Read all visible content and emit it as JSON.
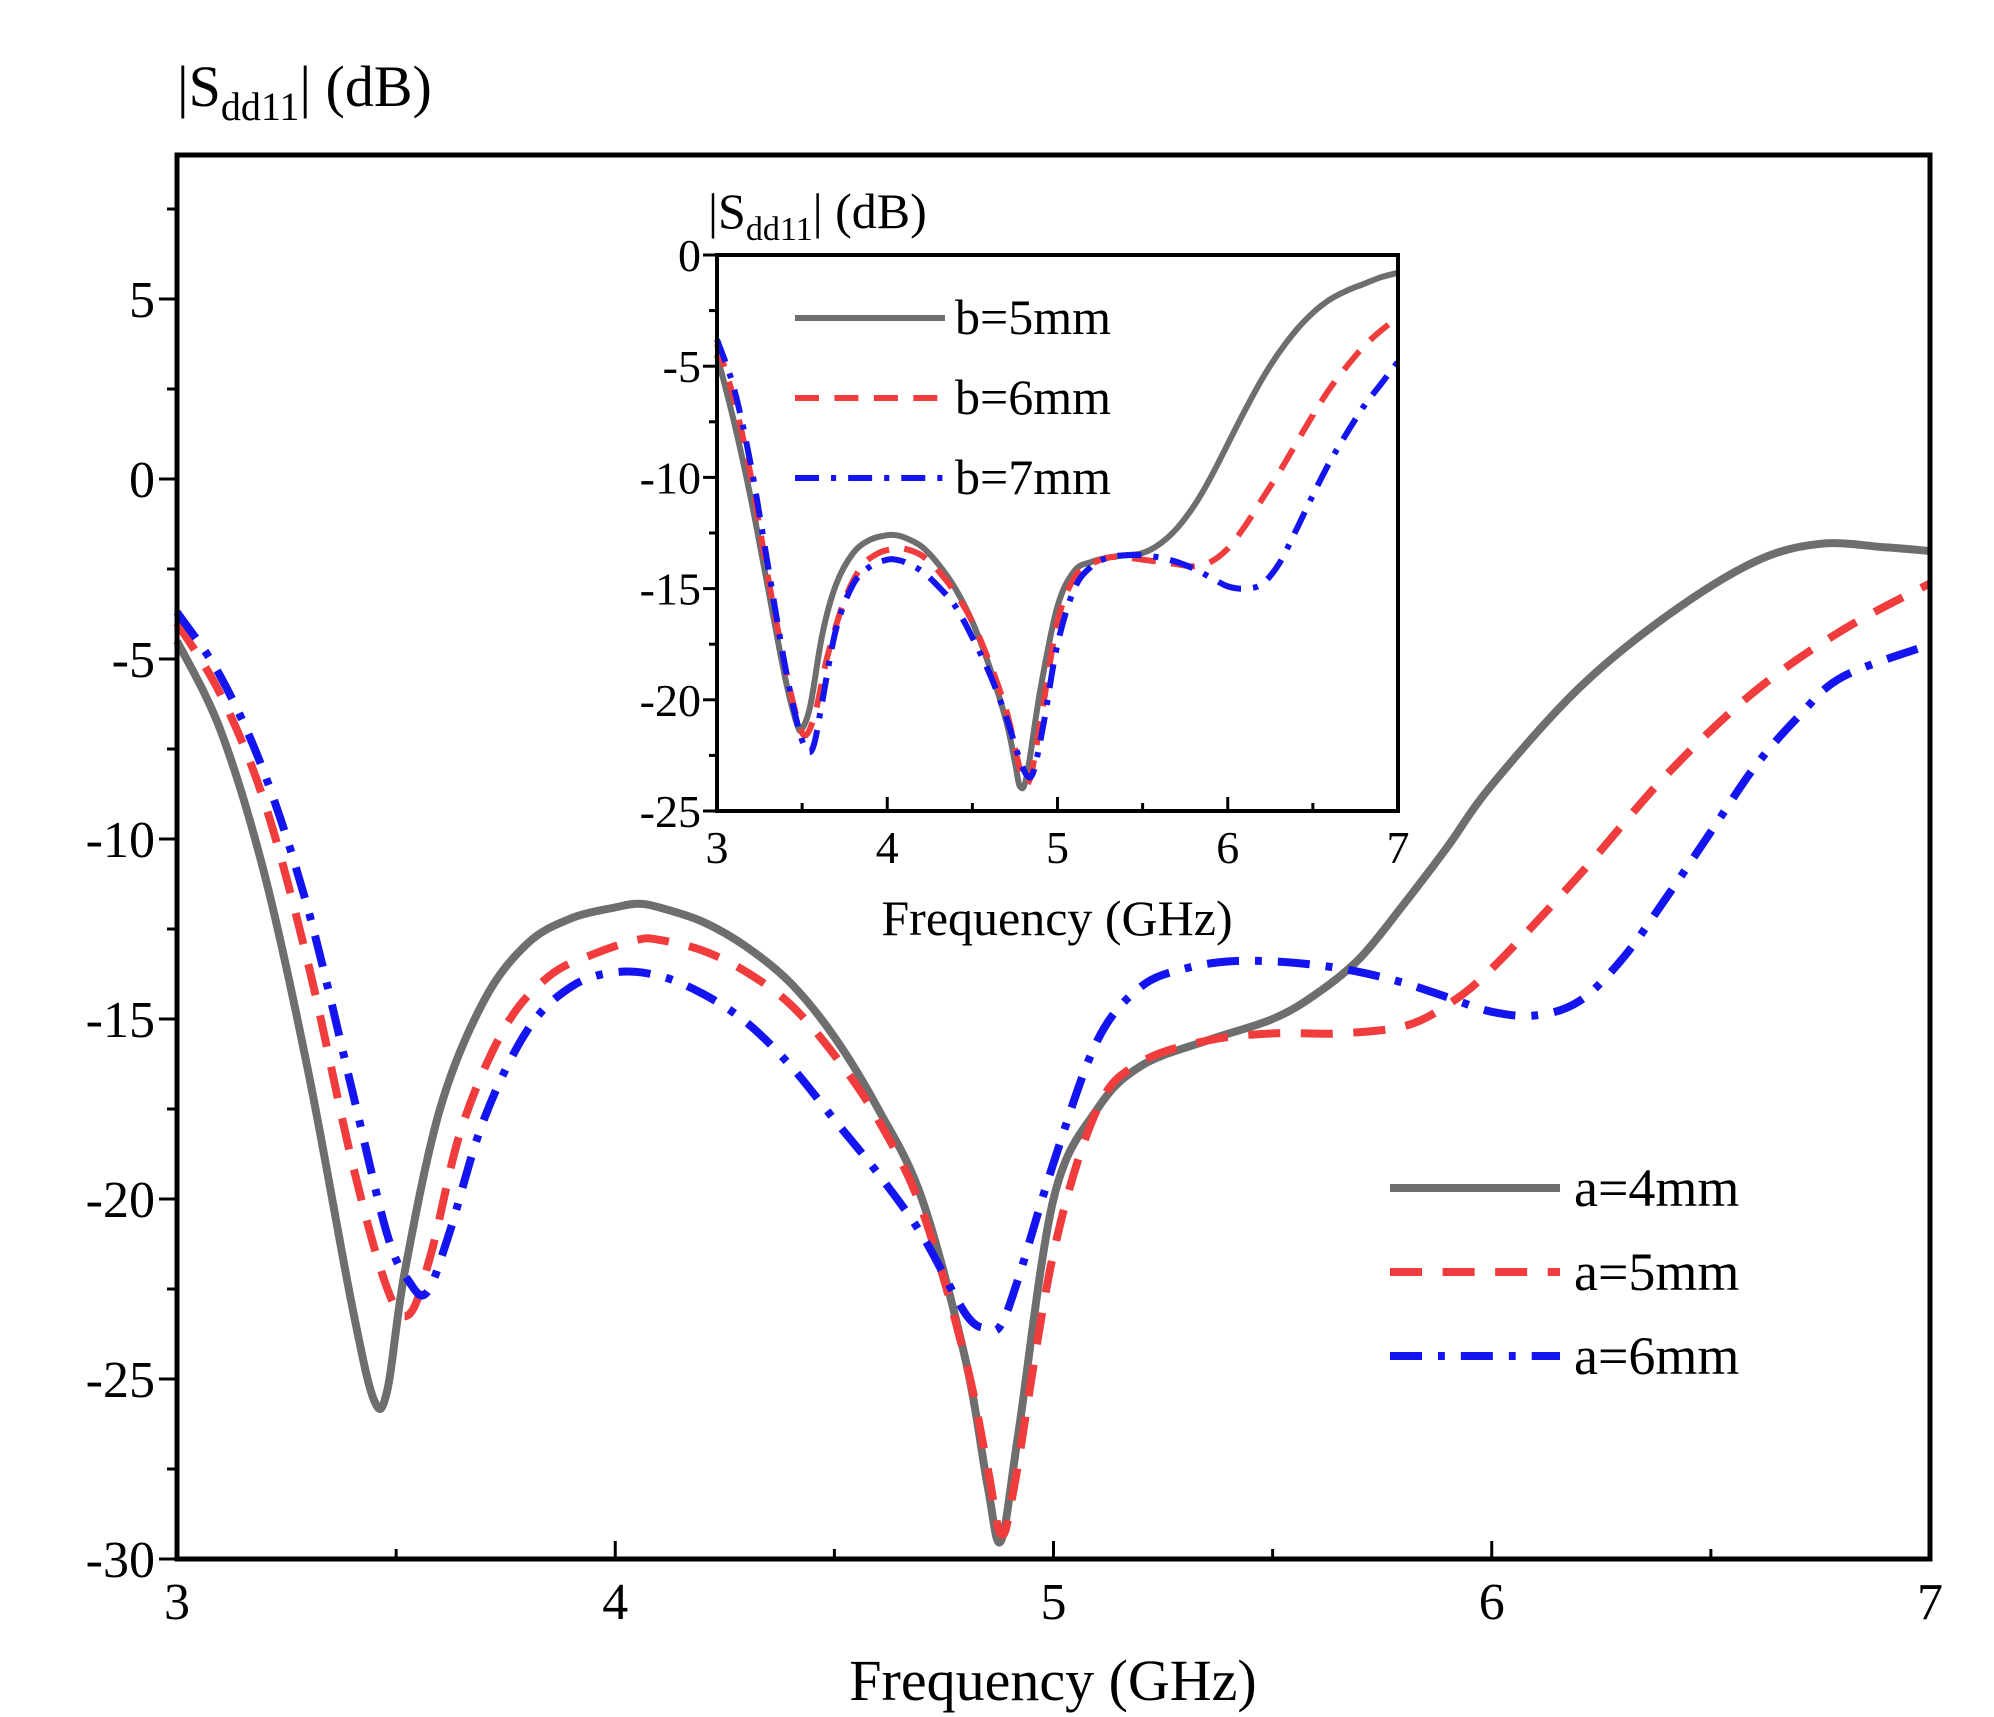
{
  "chart_data": [
    {
      "type": "line",
      "role": "main",
      "title": "",
      "ylabel": "|S",
      "ylabel_sub": "dd11",
      "ylabel_tail": "| (dB)",
      "xlabel": "Frequency (GHz)",
      "xlim": [
        3,
        7
      ],
      "ylim": [
        -30,
        9
      ],
      "xticks": [
        3,
        4,
        5,
        6,
        7
      ],
      "yticks": [
        -30,
        -25,
        -20,
        -15,
        -10,
        -5,
        0,
        5
      ],
      "x_tick_labels": [
        "3",
        "4",
        "5",
        "6",
        "7"
      ],
      "y_tick_labels": [
        "-30",
        "-25",
        "-20",
        "-15",
        "-10",
        "-5",
        "0",
        "5"
      ],
      "grid": false,
      "legend_position": "bottom-right",
      "series": [
        {
          "name": "a=4mm",
          "color": "#6e6e6e",
          "style": "solid",
          "x": [
            3.0,
            3.1,
            3.2,
            3.3,
            3.4,
            3.45,
            3.48,
            3.52,
            3.6,
            3.7,
            3.8,
            3.9,
            4.0,
            4.05,
            4.1,
            4.2,
            4.3,
            4.4,
            4.5,
            4.6,
            4.7,
            4.8,
            4.85,
            4.88,
            4.92,
            5.0,
            5.1,
            5.2,
            5.35,
            5.5,
            5.6,
            5.7,
            5.8,
            5.9,
            6.0,
            6.2,
            6.4,
            6.6,
            6.75,
            6.9,
            7.0
          ],
          "y": [
            -4.5,
            -7.0,
            -11.0,
            -16.5,
            -23.0,
            -25.6,
            -25.3,
            -22.0,
            -17.5,
            -14.5,
            -12.9,
            -12.2,
            -11.9,
            -11.8,
            -11.9,
            -12.3,
            -13.0,
            -14.0,
            -15.5,
            -17.5,
            -20.0,
            -24.5,
            -28.0,
            -29.5,
            -26.5,
            -20.0,
            -17.5,
            -16.3,
            -15.6,
            -15.0,
            -14.3,
            -13.3,
            -11.8,
            -10.2,
            -8.5,
            -5.8,
            -3.8,
            -2.3,
            -1.8,
            -1.9,
            -2.0
          ]
        },
        {
          "name": "a=5mm",
          "color": "#f03c3c",
          "style": "dashed",
          "x": [
            3.0,
            3.1,
            3.2,
            3.3,
            3.4,
            3.48,
            3.53,
            3.58,
            3.65,
            3.75,
            3.85,
            3.95,
            4.05,
            4.1,
            4.2,
            4.3,
            4.4,
            4.5,
            4.6,
            4.7,
            4.8,
            4.85,
            4.88,
            4.91,
            5.0,
            5.1,
            5.2,
            5.35,
            5.5,
            5.65,
            5.8,
            5.9,
            6.0,
            6.2,
            6.4,
            6.6,
            6.8,
            7.0
          ],
          "y": [
            -4.0,
            -6.0,
            -9.0,
            -13.5,
            -19.0,
            -22.5,
            -23.2,
            -21.5,
            -18.0,
            -15.2,
            -13.8,
            -13.2,
            -12.8,
            -12.8,
            -13.1,
            -13.7,
            -14.6,
            -16.0,
            -17.8,
            -20.3,
            -24.5,
            -27.5,
            -29.3,
            -28.0,
            -21.5,
            -17.5,
            -16.2,
            -15.6,
            -15.4,
            -15.4,
            -15.2,
            -14.6,
            -13.6,
            -11.0,
            -8.2,
            -5.9,
            -4.2,
            -2.9
          ]
        },
        {
          "name": "a=6mm",
          "color": "#1414f0",
          "style": "dashdot",
          "x": [
            3.0,
            3.1,
            3.2,
            3.3,
            3.4,
            3.48,
            3.53,
            3.57,
            3.62,
            3.7,
            3.8,
            3.9,
            4.0,
            4.1,
            4.2,
            4.3,
            4.4,
            4.5,
            4.6,
            4.7,
            4.8,
            4.85,
            4.88,
            4.92,
            5.0,
            5.1,
            5.2,
            5.3,
            5.4,
            5.5,
            5.6,
            5.7,
            5.8,
            5.9,
            6.0,
            6.1,
            6.2,
            6.3,
            6.4,
            6.5,
            6.6,
            6.7,
            6.8,
            7.0
          ],
          "y": [
            -3.7,
            -5.5,
            -8.2,
            -12.0,
            -17.0,
            -21.0,
            -22.3,
            -22.6,
            -21.0,
            -17.8,
            -15.3,
            -14.1,
            -13.7,
            -13.8,
            -14.3,
            -15.1,
            -16.3,
            -17.8,
            -19.3,
            -21.0,
            -23.2,
            -23.6,
            -23.5,
            -22.2,
            -19.0,
            -15.6,
            -14.1,
            -13.6,
            -13.4,
            -13.4,
            -13.5,
            -13.7,
            -14.0,
            -14.4,
            -14.8,
            -14.9,
            -14.5,
            -13.3,
            -11.6,
            -9.8,
            -8.0,
            -6.6,
            -5.5,
            -4.6
          ]
        }
      ]
    },
    {
      "type": "line",
      "role": "inset",
      "title": "",
      "ylabel": "|S",
      "ylabel_sub": "dd11",
      "ylabel_tail": "| (dB)",
      "xlabel": "Frequency (GHz)",
      "xlim": [
        3,
        7
      ],
      "ylim": [
        -25,
        0
      ],
      "xticks": [
        3,
        4,
        5,
        6,
        7
      ],
      "yticks": [
        -25,
        -20,
        -15,
        -10,
        -5,
        0
      ],
      "x_tick_labels": [
        "3",
        "4",
        "5",
        "6",
        "7"
      ],
      "y_tick_labels": [
        "-25",
        "-20",
        "-15",
        "-10",
        "-5",
        "0"
      ],
      "grid": false,
      "legend_position": "top-left",
      "series": [
        {
          "name": "b=5mm",
          "color": "#6e6e6e",
          "style": "solid",
          "x": [
            3.0,
            3.1,
            3.2,
            3.3,
            3.4,
            3.47,
            3.5,
            3.55,
            3.62,
            3.7,
            3.8,
            3.9,
            4.0,
            4.05,
            4.1,
            4.2,
            4.3,
            4.4,
            4.5,
            4.6,
            4.7,
            4.75,
            4.78,
            4.82,
            4.9,
            5.0,
            5.1,
            5.2,
            5.3,
            5.4,
            5.5,
            5.6,
            5.7,
            5.8,
            5.9,
            6.0,
            6.1,
            6.2,
            6.3,
            6.4,
            6.5,
            6.6,
            6.7,
            6.8,
            6.9,
            7.0
          ],
          "y": [
            -4.5,
            -7.5,
            -11.0,
            -15.0,
            -19.0,
            -21.1,
            -21.3,
            -20.2,
            -17.0,
            -14.8,
            -13.4,
            -12.8,
            -12.6,
            -12.6,
            -12.7,
            -13.1,
            -13.9,
            -15.0,
            -16.5,
            -18.5,
            -21.0,
            -22.8,
            -23.9,
            -23.4,
            -19.5,
            -15.8,
            -14.2,
            -13.8,
            -13.6,
            -13.5,
            -13.4,
            -13.0,
            -12.3,
            -11.3,
            -10.0,
            -8.5,
            -7.0,
            -5.6,
            -4.4,
            -3.4,
            -2.6,
            -2.0,
            -1.6,
            -1.3,
            -1.0,
            -0.8
          ]
        },
        {
          "name": "b=6mm",
          "color": "#f03c3c",
          "style": "dashed",
          "x": [
            3.0,
            3.1,
            3.2,
            3.3,
            3.4,
            3.47,
            3.52,
            3.58,
            3.65,
            3.75,
            3.85,
            3.95,
            4.05,
            4.1,
            4.2,
            4.3,
            4.4,
            4.5,
            4.6,
            4.7,
            4.76,
            4.8,
            4.84,
            4.9,
            5.0,
            5.1,
            5.2,
            5.3,
            5.4,
            5.5,
            5.6,
            5.7,
            5.8,
            5.9,
            6.0,
            6.1,
            6.2,
            6.3,
            6.4,
            6.5,
            6.6,
            6.7,
            6.8,
            6.9,
            7.0
          ],
          "y": [
            -4.0,
            -6.5,
            -10.0,
            -14.5,
            -18.5,
            -20.8,
            -21.6,
            -20.5,
            -18.0,
            -15.5,
            -14.0,
            -13.4,
            -13.2,
            -13.2,
            -13.5,
            -14.2,
            -15.2,
            -16.5,
            -18.3,
            -20.5,
            -22.5,
            -23.6,
            -23.5,
            -21.0,
            -16.5,
            -14.5,
            -13.9,
            -13.6,
            -13.6,
            -13.7,
            -13.8,
            -13.9,
            -14.0,
            -13.8,
            -13.2,
            -12.2,
            -11.0,
            -9.8,
            -8.5,
            -7.2,
            -6.0,
            -5.0,
            -4.1,
            -3.4,
            -2.8
          ]
        },
        {
          "name": "b=7mm",
          "color": "#1414f0",
          "style": "dashdot",
          "x": [
            3.0,
            3.1,
            3.2,
            3.3,
            3.4,
            3.48,
            3.53,
            3.57,
            3.62,
            3.7,
            3.8,
            3.9,
            4.0,
            4.05,
            4.1,
            4.2,
            4.3,
            4.4,
            4.5,
            4.6,
            4.7,
            4.77,
            4.82,
            4.86,
            4.92,
            5.0,
            5.1,
            5.2,
            5.3,
            5.4,
            5.5,
            5.6,
            5.7,
            5.8,
            5.9,
            6.0,
            6.1,
            6.2,
            6.3,
            6.4,
            6.5,
            6.6,
            6.7,
            6.8,
            6.9,
            7.0
          ],
          "y": [
            -3.8,
            -6.0,
            -9.5,
            -14.0,
            -18.5,
            -21.3,
            -22.3,
            -22.0,
            -20.0,
            -16.8,
            -14.8,
            -14.0,
            -13.7,
            -13.7,
            -13.8,
            -14.2,
            -14.9,
            -15.8,
            -17.2,
            -18.8,
            -20.8,
            -22.5,
            -23.4,
            -23.2,
            -21.0,
            -17.5,
            -15.0,
            -14.0,
            -13.6,
            -13.5,
            -13.5,
            -13.6,
            -13.8,
            -14.1,
            -14.5,
            -14.9,
            -15.0,
            -14.8,
            -13.9,
            -12.4,
            -10.8,
            -9.3,
            -8.0,
            -6.8,
            -5.8,
            -4.8
          ]
        }
      ]
    }
  ]
}
